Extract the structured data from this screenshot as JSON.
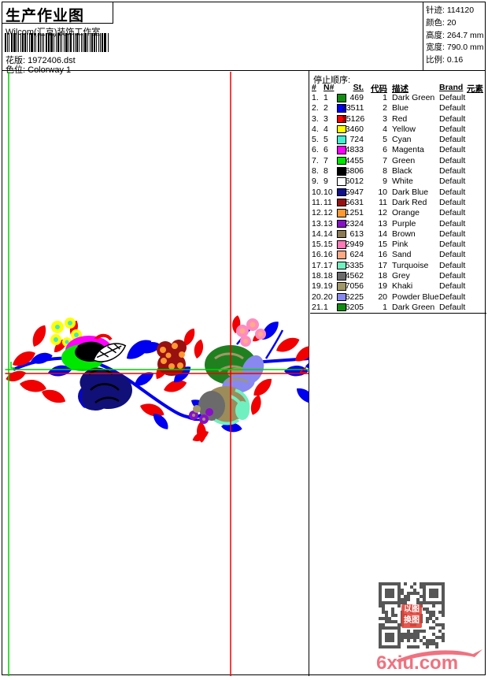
{
  "header": {
    "title": "生产作业图",
    "studio": "Wilcom(汇京)装饰工作室",
    "design_label": "花版:",
    "design_value": "1972406.dst",
    "colorway_label": "色位:",
    "colorway_value": "Colorway 1",
    "stats": [
      {
        "label": "针迹:",
        "value": "114120"
      },
      {
        "label": "颜色:",
        "value": "20"
      },
      {
        "label": "高度:",
        "value": "264.7 mm"
      },
      {
        "label": "宽度:",
        "value": "790.0 mm"
      },
      {
        "label": "比例:",
        "value": "0.16"
      }
    ]
  },
  "color_table": {
    "title": "停止顺序:",
    "columns": {
      "seq": "#",
      "n": "N#",
      "st": "St.",
      "code": "代码",
      "desc": "描述",
      "brand": "Brand",
      "elem": "元素"
    },
    "rows": [
      {
        "seq": "1.",
        "n": "1",
        "color": "#108C10",
        "st": "469",
        "code": "1",
        "desc": "Dark Green",
        "brand": "Default",
        "elem": ""
      },
      {
        "seq": "2.",
        "n": "2",
        "color": "#0000FF",
        "st": "23511",
        "code": "2",
        "desc": "Blue",
        "brand": "Default",
        "elem": ""
      },
      {
        "seq": "3.",
        "n": "3",
        "color": "#FF0000",
        "st": "15126",
        "code": "3",
        "desc": "Red",
        "brand": "Default",
        "elem": ""
      },
      {
        "seq": "4.",
        "n": "4",
        "color": "#FFFF00",
        "st": "3460",
        "code": "4",
        "desc": "Yellow",
        "brand": "Default",
        "elem": ""
      },
      {
        "seq": "5.",
        "n": "5",
        "color": "#40F0D0",
        "st": "724",
        "code": "5",
        "desc": "Cyan",
        "brand": "Default",
        "elem": ""
      },
      {
        "seq": "6.",
        "n": "6",
        "color": "#FF00FF",
        "st": "4833",
        "code": "6",
        "desc": "Magenta",
        "brand": "Default",
        "elem": ""
      },
      {
        "seq": "7.",
        "n": "7",
        "color": "#00E800",
        "st": "4455",
        "code": "7",
        "desc": "Green",
        "brand": "Default",
        "elem": ""
      },
      {
        "seq": "8.",
        "n": "8",
        "color": "#000000",
        "st": "6806",
        "code": "8",
        "desc": "Black",
        "brand": "Default",
        "elem": ""
      },
      {
        "seq": "9.",
        "n": "9",
        "color": "#FFFFFF",
        "st": "6012",
        "code": "9",
        "desc": "White",
        "brand": "Default",
        "elem": ""
      },
      {
        "seq": "10.",
        "n": "10",
        "color": "#101090",
        "st": "5947",
        "code": "10",
        "desc": "Dark Blue",
        "brand": "Default",
        "elem": ""
      },
      {
        "seq": "11.",
        "n": "11",
        "color": "#981010",
        "st": "5631",
        "code": "11",
        "desc": "Dark Red",
        "brand": "Default",
        "elem": ""
      },
      {
        "seq": "12.",
        "n": "12",
        "color": "#FF9830",
        "st": "1251",
        "code": "12",
        "desc": "Orange",
        "brand": "Default",
        "elem": ""
      },
      {
        "seq": "13.",
        "n": "13",
        "color": "#8810C8",
        "st": "2324",
        "code": "13",
        "desc": "Purple",
        "brand": "Default",
        "elem": ""
      },
      {
        "seq": "14.",
        "n": "14",
        "color": "#8C7A52",
        "st": "613",
        "code": "14",
        "desc": "Brown",
        "brand": "Default",
        "elem": ""
      },
      {
        "seq": "15.",
        "n": "15",
        "color": "#FF78B8",
        "st": "2949",
        "code": "15",
        "desc": "Pink",
        "brand": "Default",
        "elem": ""
      },
      {
        "seq": "16.",
        "n": "16",
        "color": "#FFA884",
        "st": "624",
        "code": "16",
        "desc": "Sand",
        "brand": "Default",
        "elem": ""
      },
      {
        "seq": "17.",
        "n": "17",
        "color": "#70F0C0",
        "st": "5335",
        "code": "17",
        "desc": "Turquoise",
        "brand": "Default",
        "elem": ""
      },
      {
        "seq": "18.",
        "n": "18",
        "color": "#6B6B6B",
        "st": "4562",
        "code": "18",
        "desc": "Grey",
        "brand": "Default",
        "elem": ""
      },
      {
        "seq": "19.",
        "n": "19",
        "color": "#A09868",
        "st": "7056",
        "code": "19",
        "desc": "Khaki",
        "brand": "Default",
        "elem": ""
      },
      {
        "seq": "20.",
        "n": "20",
        "color": "#8888F0",
        "st": "6225",
        "code": "20",
        "desc": "Powder Blue",
        "brand": "Default",
        "elem": ""
      },
      {
        "seq": "21.",
        "n": "1",
        "color": "#108C10",
        "st": "6205",
        "code": "1",
        "desc": "Dark Green",
        "brand": "Default",
        "elem": ""
      }
    ]
  },
  "footer": {
    "site_logo": "6xiu.com",
    "qr_stamp_line1": "以图",
    "qr_stamp_line2": "换图"
  },
  "design_colors": {
    "line_green": "#00D000",
    "line_red": "#F00000",
    "qr_module": "#575757",
    "logo_pink": "#EF7280"
  }
}
